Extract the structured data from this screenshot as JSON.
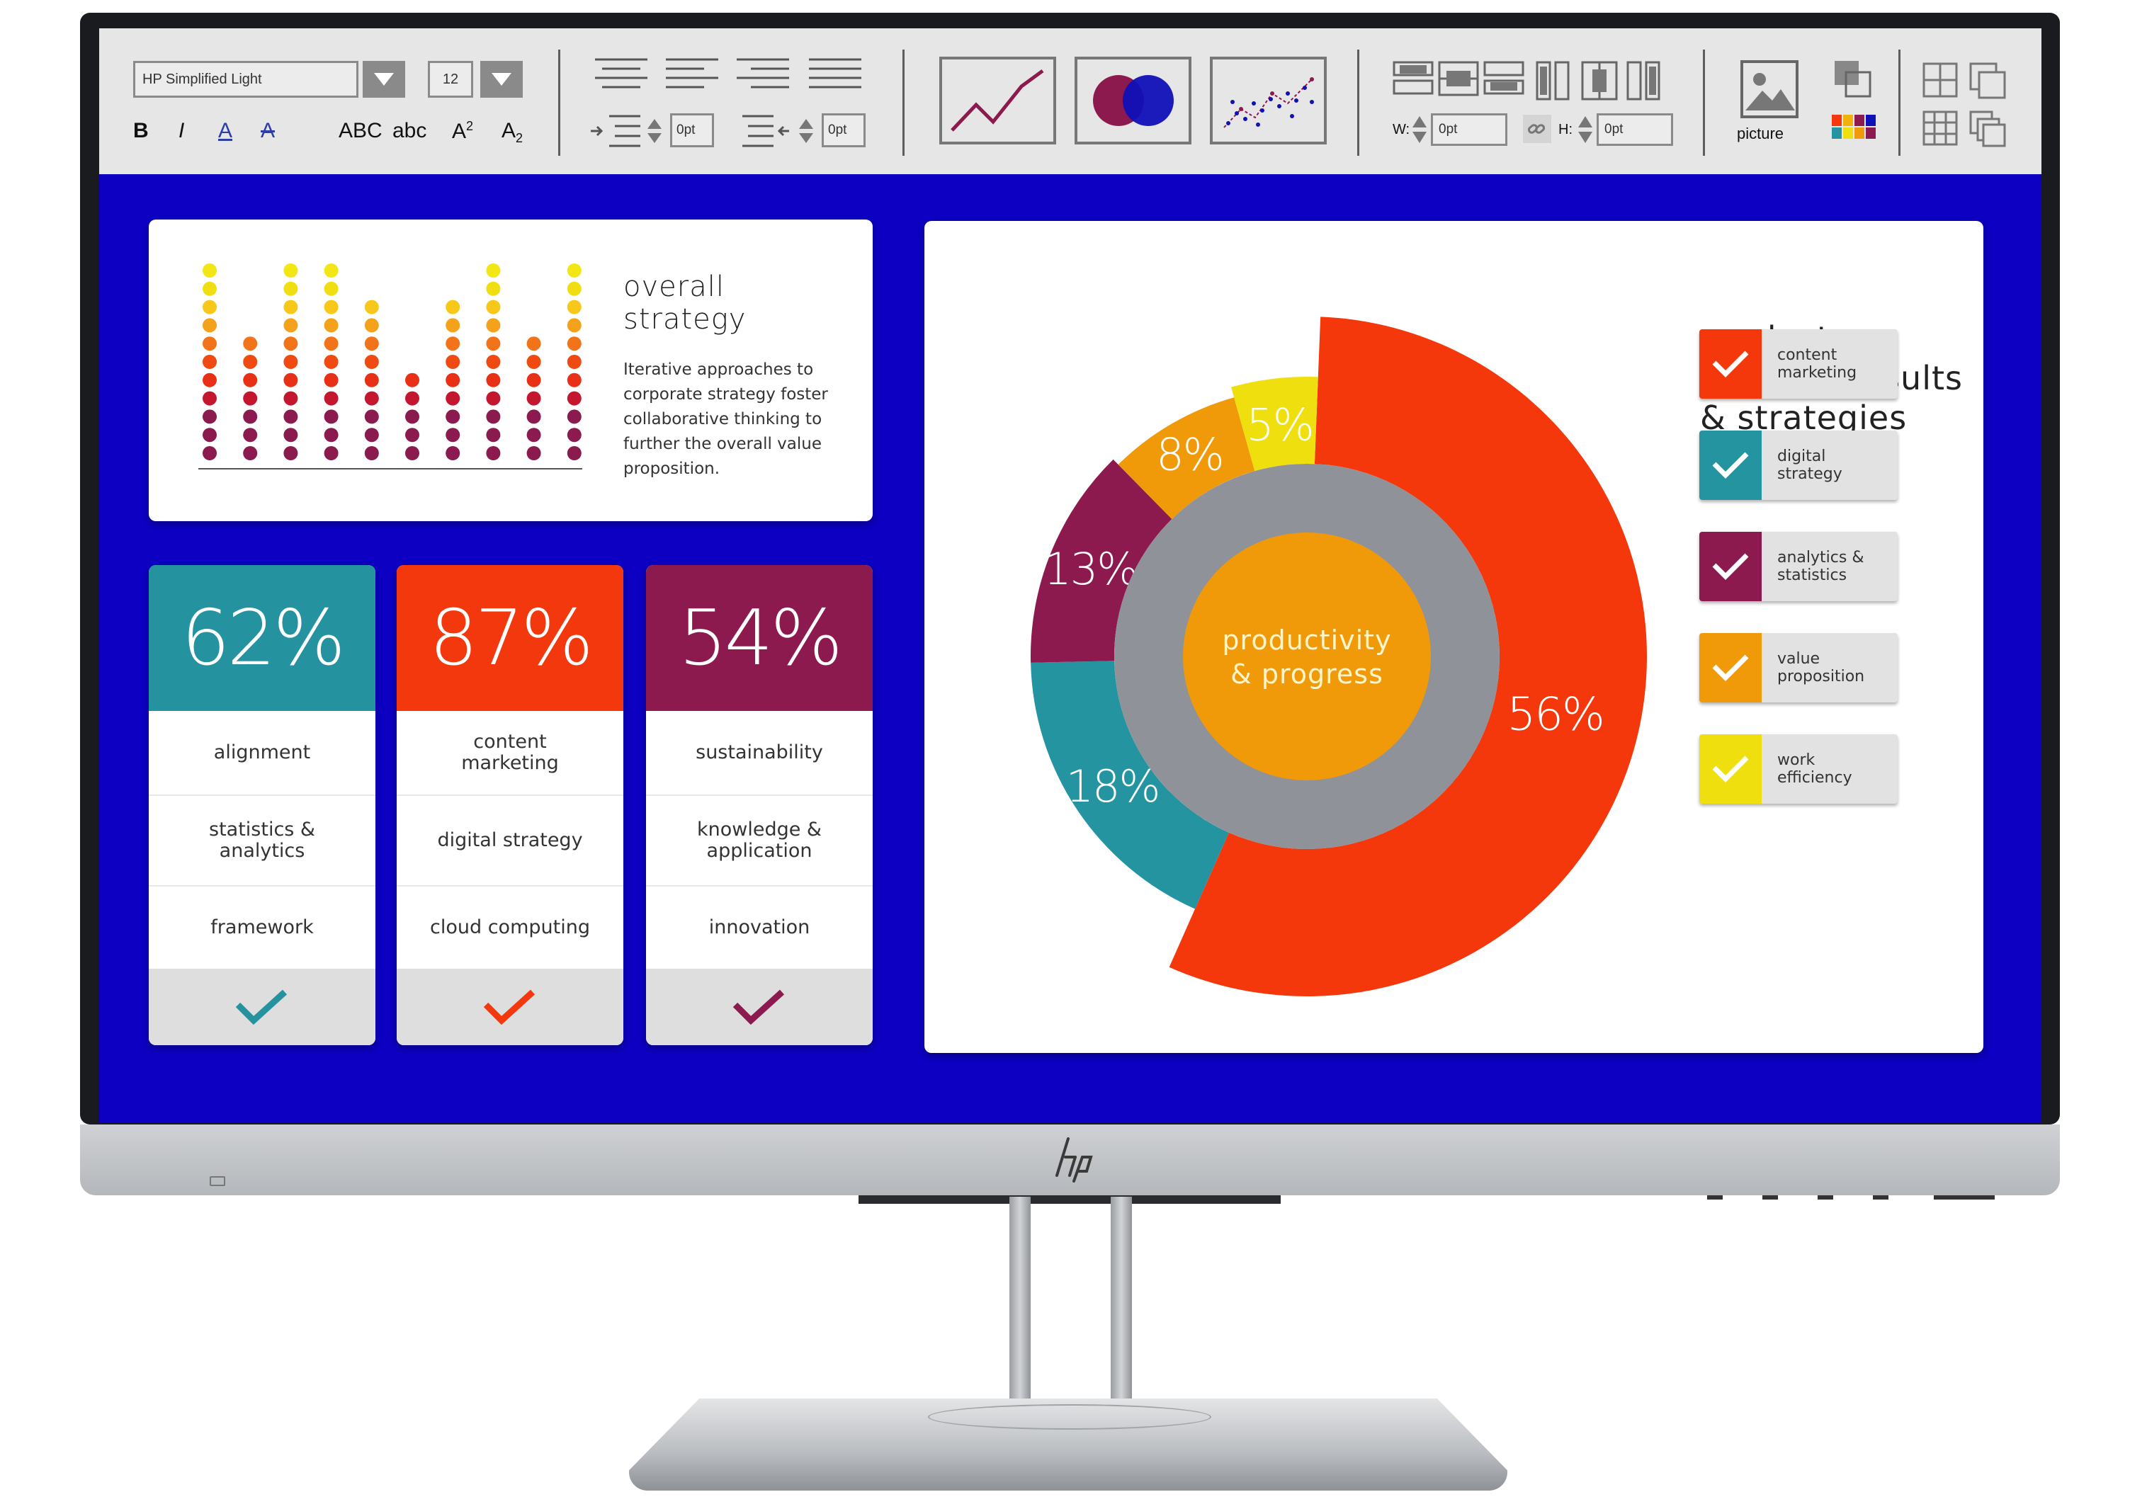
{
  "toolbar": {
    "font_name": "HP Simplified Light",
    "font_size": "12",
    "bold": "B",
    "italic": "I",
    "underline": "A",
    "strike": "A",
    "upper": "ABC",
    "lower": "abc",
    "superscript": "A",
    "superscript_mark": "2",
    "subscript": "A",
    "subscript_mark": "2",
    "indent_value_1": "0pt",
    "indent_value_2": "0pt",
    "width_label": "W:",
    "width_value": "0pt",
    "height_label": "H:",
    "height_value": "0pt",
    "picture_label": "picture"
  },
  "strategy": {
    "title": "overall\nstrategy",
    "description": "Iterative approaches to corporate strategy foster collaborative thinking to further the overall value proposition.",
    "dot_levels": [
      11,
      7,
      11,
      11,
      9,
      5,
      9,
      11,
      7,
      11
    ],
    "dot_colors": [
      "#8b1a4e",
      "#8b1a4e",
      "#8b1a4e",
      "#c4162e",
      "#e83016",
      "#ef4a12",
      "#f2741a",
      "#f4a21c",
      "#f7c81a",
      "#f0de12",
      "#f3e615"
    ]
  },
  "kpis": [
    {
      "value": "62%",
      "color": "#2592a0",
      "items": [
        "alignment",
        "statistics &\nanalytics",
        "framework"
      ]
    },
    {
      "value": "87%",
      "color": "#f2380c",
      "items": [
        "content\nmarketing",
        "digital strategy",
        "cloud computing"
      ]
    },
    {
      "value": "54%",
      "color": "#8c1a4e",
      "items": [
        "sustainability",
        "knowledge &\napplication",
        "innovation"
      ]
    }
  ],
  "product": {
    "title": "product\nanalysis results\n& strategies",
    "center_label_1": "productivity",
    "center_label_2": "& progress"
  },
  "chart_data": {
    "type": "pie",
    "title": "",
    "slices": [
      {
        "label": "content marketing",
        "value": 56,
        "text": "56%",
        "color": "#f4380b"
      },
      {
        "label": "digital strategy",
        "value": 18,
        "text": "18%",
        "color": "#2594a1"
      },
      {
        "label": "analytics & statistics",
        "value": 13,
        "text": "13%",
        "color": "#8c1a4e"
      },
      {
        "label": "value proposition",
        "value": 8,
        "text": "8%",
        "color": "#f09a0a"
      },
      {
        "label": "work efficiency",
        "value": 5,
        "text": "5%",
        "color": "#f0df0f"
      }
    ]
  },
  "legend": [
    {
      "label": "content\nmarketing",
      "color": "#f4380b"
    },
    {
      "label": "digital\nstrategy",
      "color": "#2594a1"
    },
    {
      "label": "analytics &\nstatistics",
      "color": "#8c1a4e"
    },
    {
      "label": "value\nproposition",
      "color": "#f09a0a"
    },
    {
      "label": "work\nefficiency",
      "color": "#f0df0f"
    }
  ]
}
